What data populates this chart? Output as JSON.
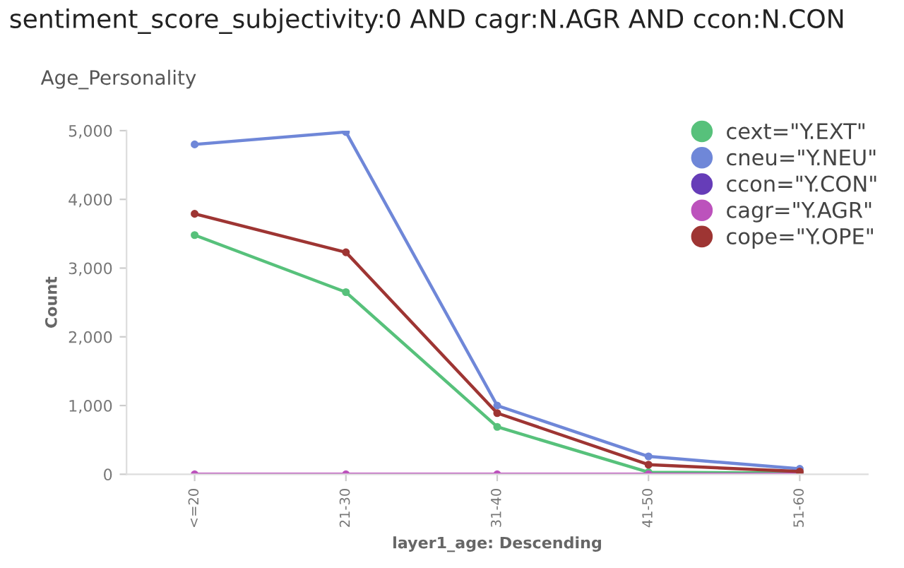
{
  "chart_data": {
    "type": "line",
    "title": "Age_Personality",
    "annotations": [
      "sentiment_score_subjectivity:0 AND cagr:N.AGR AND ccon:N.CON"
    ],
    "xlabel": "layer1_age: Descending",
    "ylabel": "Count",
    "categories": [
      "<=20",
      "21-30",
      "31-40",
      "41-50",
      "51-60"
    ],
    "series": [
      {
        "name": "cext=\"Y.EXT\"",
        "color": "#57c17b",
        "values": [
          3480,
          2650,
          690,
          30,
          20
        ]
      },
      {
        "name": "cneu=\"Y.NEU\"",
        "color": "#6f87d8",
        "values": [
          4800,
          4980,
          1000,
          260,
          80
        ]
      },
      {
        "name": "ccon=\"Y.CON\"",
        "color": "#663db8",
        "values": [
          null,
          null,
          null,
          null,
          null
        ]
      },
      {
        "name": "cagr=\"Y.AGR\"",
        "color": "#bc52bc",
        "values": [
          0,
          0,
          0,
          0,
          0
        ]
      },
      {
        "name": "cope=\"Y.OPE\"",
        "color": "#9e3533",
        "values": [
          3790,
          3230,
          890,
          140,
          40
        ]
      }
    ],
    "ylim": [
      0,
      5000
    ],
    "yticks": [
      {
        "value": 0,
        "label": "0"
      },
      {
        "value": 1000,
        "label": "1,000"
      },
      {
        "value": 2000,
        "label": "2,000"
      },
      {
        "value": 3000,
        "label": "3,000"
      },
      {
        "value": 4000,
        "label": "4,000"
      },
      {
        "value": 5000,
        "label": "5,000"
      }
    ],
    "grid": false,
    "legend": "top right",
    "marker": "circle",
    "line_style": "solid"
  }
}
